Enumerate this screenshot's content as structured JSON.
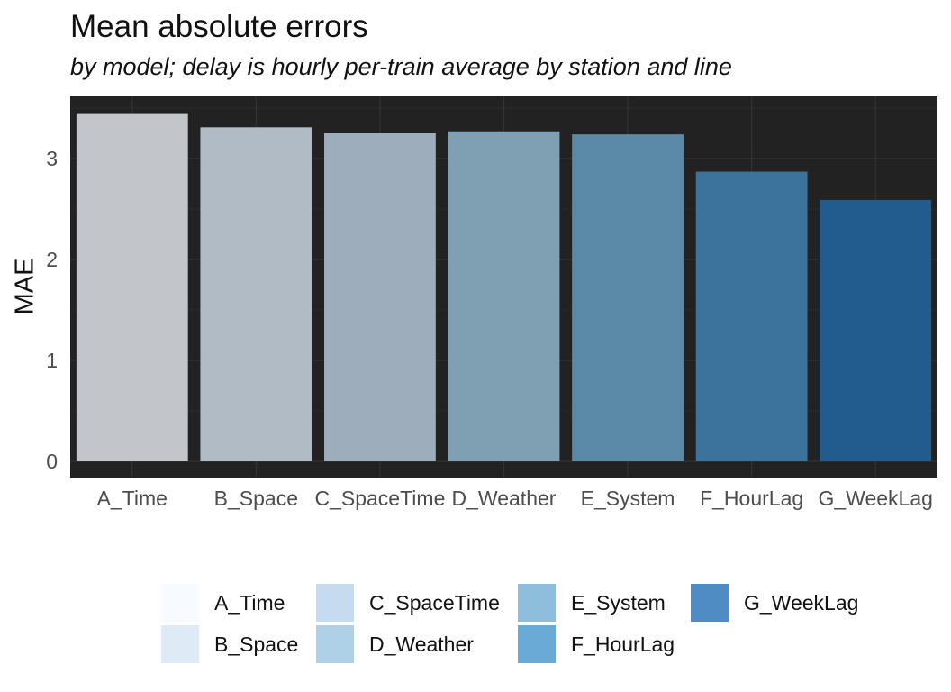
{
  "chart_data": {
    "type": "bar",
    "title": "Mean absolute errors",
    "subtitle": "by model; delay is hourly per-train average by station and line",
    "xlabel": "",
    "ylabel": "MAE",
    "ylim": [
      0,
      3.55
    ],
    "yticks": [
      0,
      1,
      2,
      3
    ],
    "grid": true,
    "legend_position": "bottom",
    "panel_background": "#222222",
    "grid_color": "#333333",
    "categories": [
      "A_Time",
      "B_Space",
      "C_SpaceTime",
      "D_Weather",
      "E_System",
      "F_HourLag",
      "G_WeekLag"
    ],
    "values": [
      3.45,
      3.31,
      3.25,
      3.27,
      3.24,
      2.87,
      2.59
    ],
    "bar_colors": [
      "#c2c6ca",
      "#b0bbc5",
      "#9dadbb",
      "#7fa0b3",
      "#5a8aa8",
      "#3a739c",
      "#225c8f"
    ],
    "legend": {
      "entries": [
        "A_Time",
        "B_Space",
        "C_SpaceTime",
        "D_Weather",
        "E_System",
        "F_HourLag",
        "G_WeekLag"
      ],
      "colors": [
        "#f7fbff",
        "#deebf7",
        "#c6dbef",
        "#aed1e7",
        "#8fbedd",
        "#6aaad6",
        "#4e8cc3"
      ]
    }
  }
}
